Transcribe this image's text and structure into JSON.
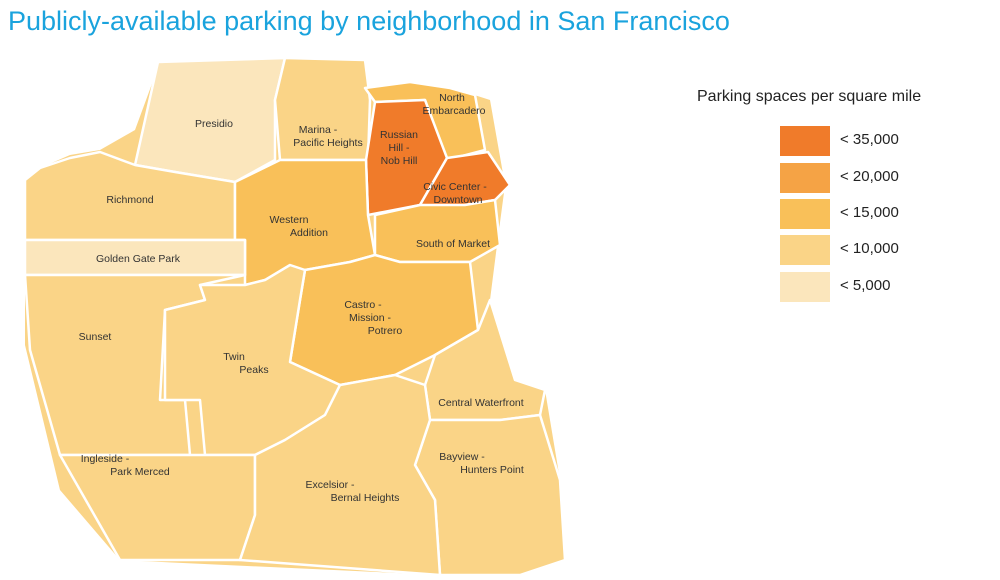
{
  "title": "Publicly-available parking by neighborhood in San Francisco",
  "legend": {
    "title": "Parking spaces per square mile",
    "items": [
      {
        "label": "< 35,000",
        "color": "#f07b2a"
      },
      {
        "label": "< 20,000",
        "color": "#f5a345"
      },
      {
        "label": "< 15,000",
        "color": "#f9c059"
      },
      {
        "label": "< 10,000",
        "color": "#fad487"
      },
      {
        "label": "< 5,000",
        "color": "#fbe6bc"
      }
    ]
  },
  "neighborhoods": [
    {
      "id": "presidio",
      "lines": [
        "Presidio"
      ],
      "class": "< 5,000"
    },
    {
      "id": "marina",
      "lines": [
        "Marina -",
        "Pacific Heights"
      ],
      "class": "< 10,000"
    },
    {
      "id": "north-embarcadero",
      "lines": [
        "North",
        "Embarcadero"
      ],
      "class": "< 15,000"
    },
    {
      "id": "russian-hill",
      "lines": [
        "Russian",
        "Hill -",
        "Nob Hill"
      ],
      "class": "< 35,000"
    },
    {
      "id": "civic-center",
      "lines": [
        "Civic Center -",
        "Downtown"
      ],
      "class": "< 35,000"
    },
    {
      "id": "richmond",
      "lines": [
        "Richmond"
      ],
      "class": "< 10,000"
    },
    {
      "id": "western-addition",
      "lines": [
        "Western",
        "Addition"
      ],
      "class": "< 15,000"
    },
    {
      "id": "south-of-market",
      "lines": [
        "South of Market"
      ],
      "class": "< 15,000"
    },
    {
      "id": "golden-gate-park",
      "lines": [
        "Golden Gate Park"
      ],
      "class": "< 5,000"
    },
    {
      "id": "sunset",
      "lines": [
        "Sunset"
      ],
      "class": "< 10,000"
    },
    {
      "id": "castro",
      "lines": [
        "Castro -",
        "Mission -",
        "Potrero"
      ],
      "class": "< 15,000"
    },
    {
      "id": "twin-peaks",
      "lines": [
        "Twin",
        "Peaks"
      ],
      "class": "< 10,000"
    },
    {
      "id": "central-waterfront",
      "lines": [
        "Central Waterfront"
      ],
      "class": "< 10,000"
    },
    {
      "id": "ingleside",
      "lines": [
        "Ingleside -",
        "Park Merced"
      ],
      "class": "< 10,000"
    },
    {
      "id": "bayview",
      "lines": [
        "Bayview -",
        "Hunters Point"
      ],
      "class": "< 10,000"
    },
    {
      "id": "excelsior",
      "lines": [
        "Excelsior -",
        "Bernal Heights"
      ],
      "class": "< 10,000"
    }
  ]
}
